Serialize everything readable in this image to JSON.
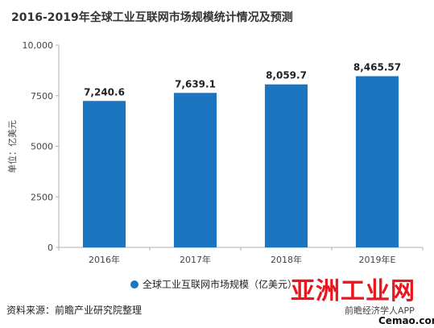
{
  "chart_data": {
    "type": "bar",
    "title": "2016-2019年全球工业互联网市场规模统计情况及预测",
    "ylabel": "单位：亿美元",
    "categories": [
      "2016年",
      "2017年",
      "2018年",
      "2019年E"
    ],
    "values": [
      7240.6,
      7639.1,
      8059.7,
      8465.57
    ],
    "value_labels": [
      "7,240.6",
      "7,639.1",
      "8,059.7",
      "8,465.57"
    ],
    "yticks": [
      0,
      2500,
      5000,
      7500,
      10000
    ],
    "ytick_labels": [
      "0",
      "2500",
      "5000",
      "7500",
      "10,000"
    ],
    "ylim": [
      0,
      10000
    ],
    "grid": false,
    "legend": {
      "placement": "bottom",
      "items": [
        {
          "label": "全球工业互联网市场规模（亿美元）"
        }
      ]
    },
    "bar_color": "#1b75c0",
    "source": "资料来源：前瞻产业研究院整理"
  },
  "watermark": {
    "brand_logo": "亚洲工业网",
    "brand_url": "Cemao.com",
    "app_text": "前瞻经济学人APP"
  },
  "colors": {
    "logo_red": "#e8171f",
    "axis": "#b0b0b0"
  }
}
